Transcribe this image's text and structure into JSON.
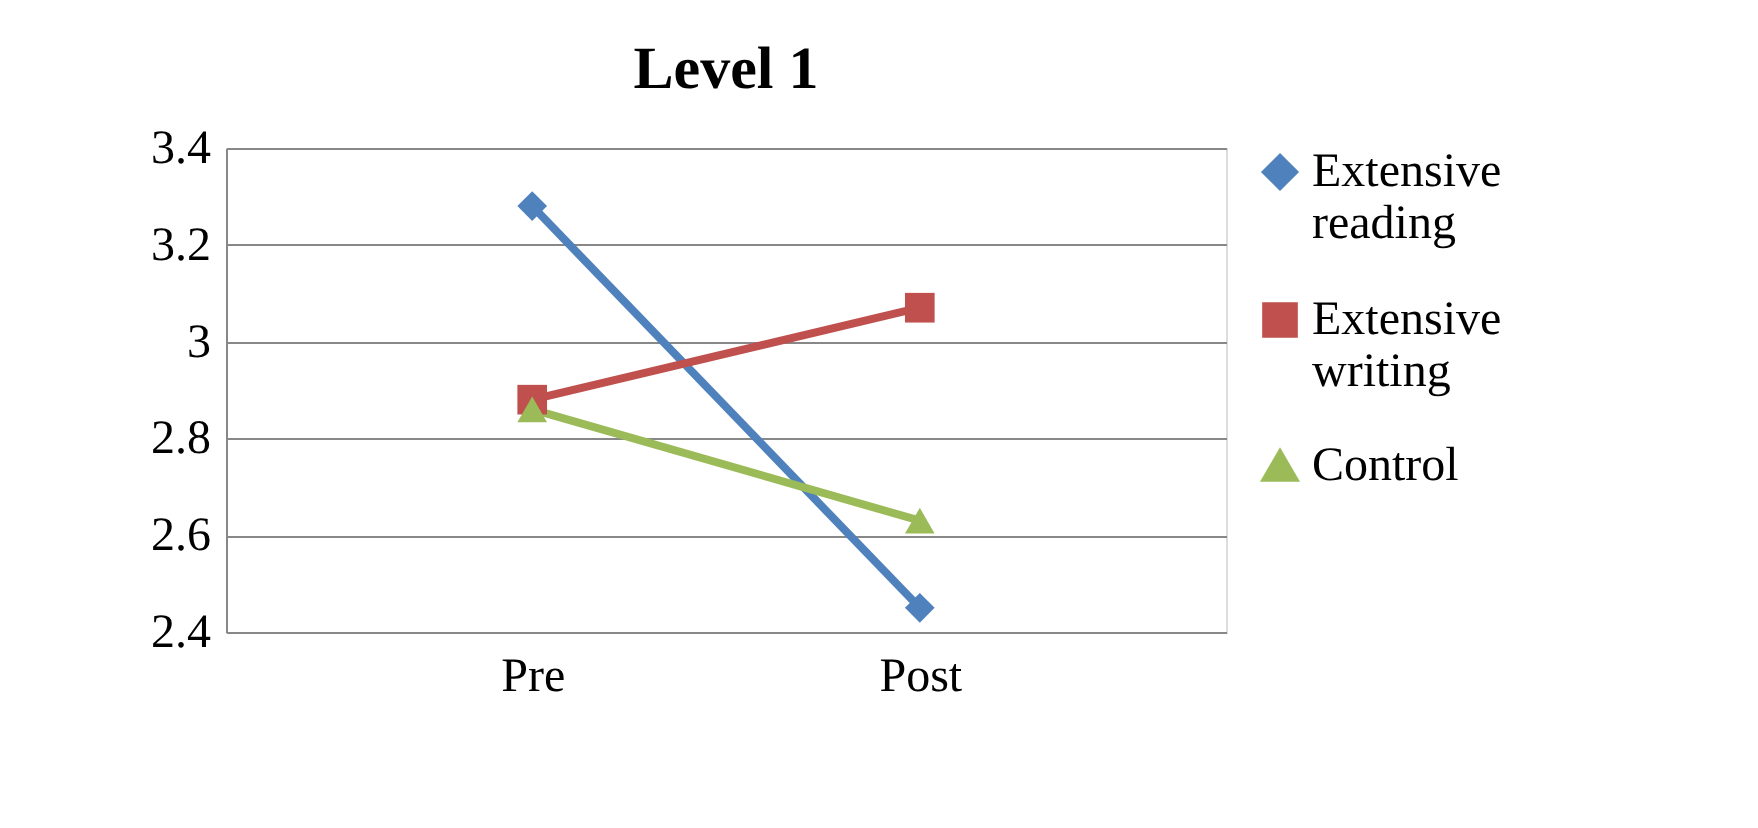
{
  "chart_data": {
    "type": "line",
    "title": "Level 1",
    "categories": [
      "Pre",
      "Post"
    ],
    "series": [
      {
        "name": "Extensive reading",
        "color": "#4f81bd",
        "marker": "diamond",
        "values": [
          3.28,
          2.45
        ]
      },
      {
        "name": "Extensive writing",
        "color": "#c0504d",
        "marker": "square",
        "values": [
          2.88,
          3.07
        ]
      },
      {
        "name": "Control",
        "color": "#9bbb59",
        "marker": "triangle",
        "values": [
          2.86,
          2.63
        ]
      }
    ],
    "ylim": [
      2.4,
      3.4
    ],
    "yticks": [
      2.4,
      2.6,
      2.8,
      3,
      3.2,
      3.4
    ],
    "grid": "y",
    "legend": "right",
    "line_style": "solid"
  }
}
